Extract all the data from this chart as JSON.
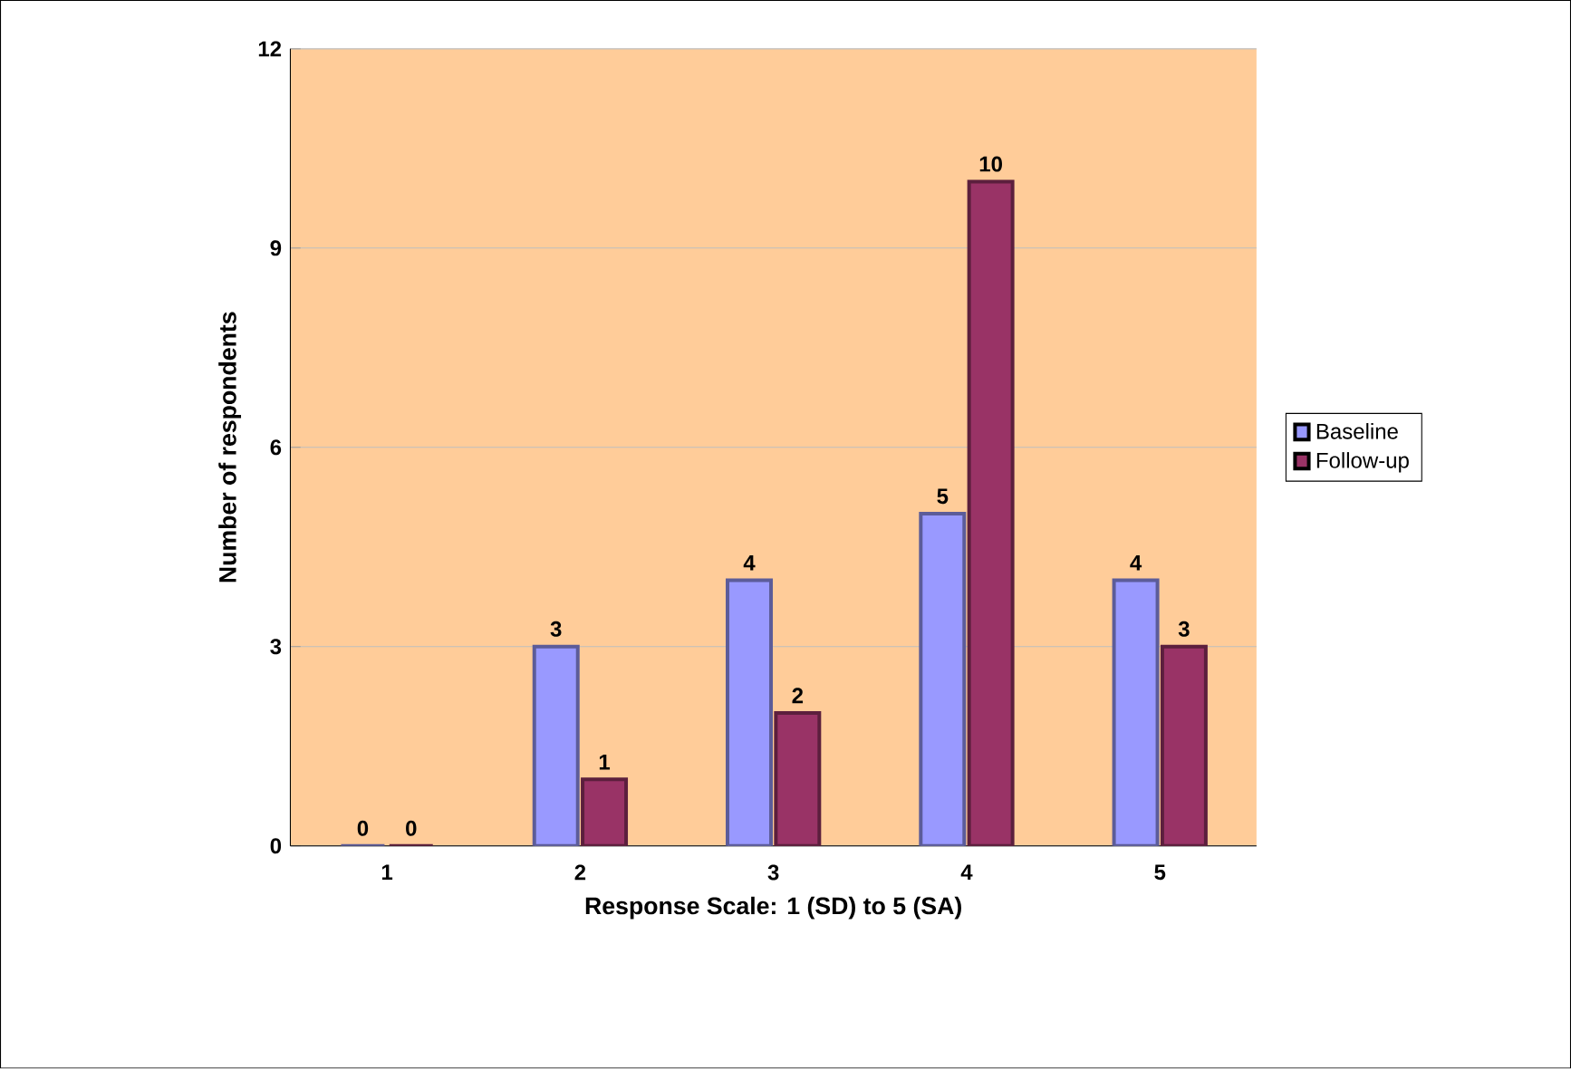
{
  "chart_data": {
    "type": "bar",
    "xlabel": "Response Scale: 1 (SD) to 5 (SA)",
    "ylabel": "Number of respondents",
    "categories": [
      "1",
      "2",
      "3",
      "4",
      "5"
    ],
    "series": [
      {
        "name": "Baseline",
        "color": "#9999ff",
        "values": [
          0,
          3,
          4,
          5,
          4
        ]
      },
      {
        "name": "Follow-up",
        "color": "#993366",
        "values": [
          0,
          1,
          2,
          10,
          3
        ]
      }
    ],
    "ylim": [
      0,
      12
    ],
    "yticks": [
      0,
      3,
      6,
      9,
      12
    ],
    "grid": "y",
    "legend": "right",
    "data_labels": true
  }
}
